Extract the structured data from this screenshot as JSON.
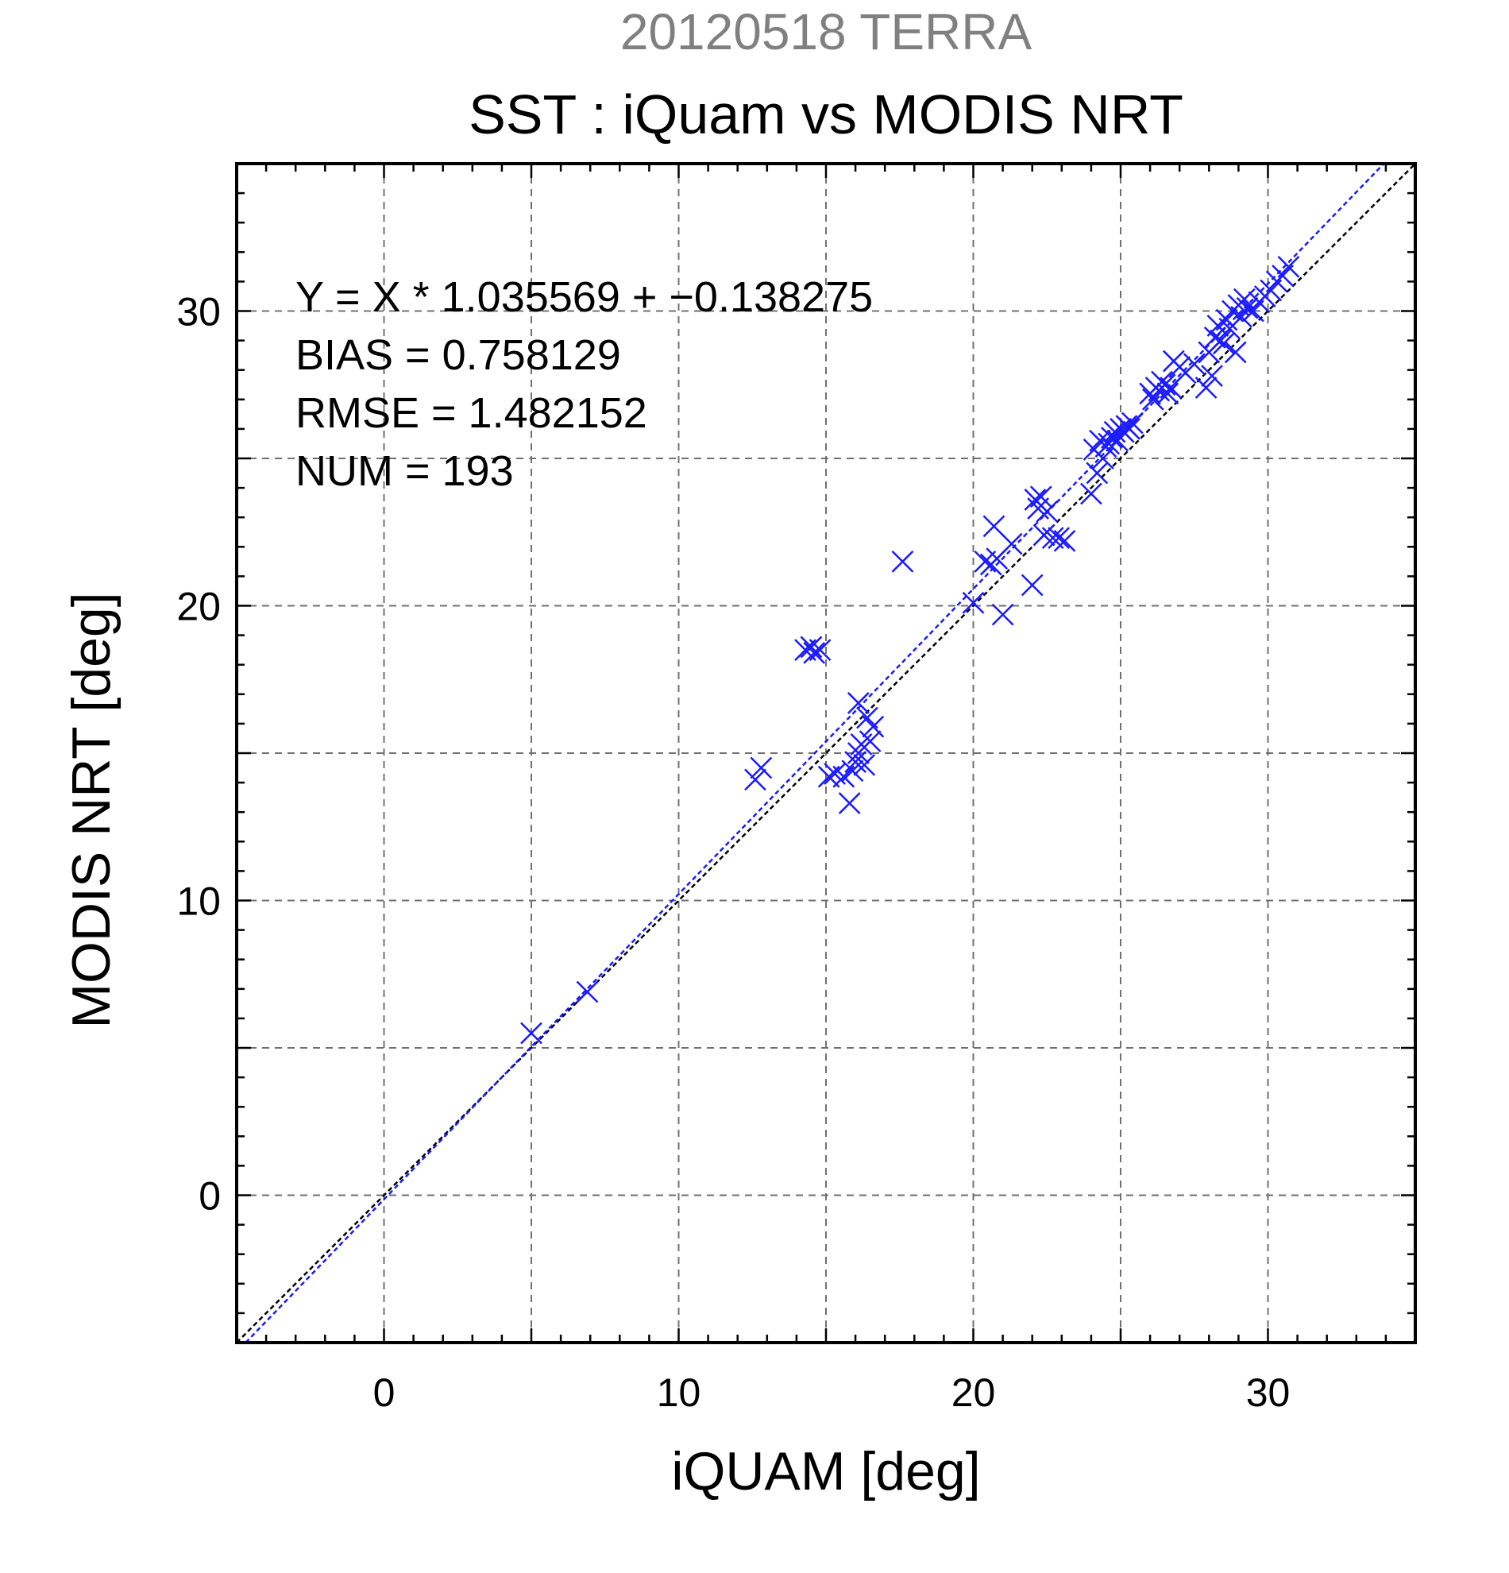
{
  "chart_data": {
    "type": "scatter",
    "title": "SST : iQuam vs MODIS NRT",
    "subtitle": "20120518 TERRA",
    "xlabel": "iQUAM [deg]",
    "ylabel": "MODIS NRT [deg]",
    "xlim": [
      -5,
      35
    ],
    "ylim": [
      -5,
      35
    ],
    "major_ticks": [
      0,
      10,
      20,
      30
    ],
    "tick_labels": [
      "0",
      "10",
      "20",
      "30"
    ],
    "grid": true,
    "grid_step": 5,
    "stats": [
      "Y = X * 1.035569 + −0.138275",
      "BIAS = 0.758129",
      "RMSE = 1.482152",
      "NUM = 193"
    ],
    "fit": {
      "slope": 1.035569,
      "intercept": -0.138275
    },
    "colors": {
      "points": "#1a1aff",
      "fit_line": "#1a1aff",
      "identity_line": "#000000",
      "subtitle": "#808080"
    },
    "marker": "x",
    "series": [
      {
        "x": [
          5.0,
          6.9,
          12.6,
          12.8,
          14.3,
          14.5,
          14.6,
          14.8,
          15.1,
          15.3,
          15.6,
          15.8,
          15.9,
          16.0,
          16.1,
          16.1,
          16.2,
          16.3,
          16.4,
          16.5,
          16.6,
          17.6,
          20.0,
          20.4,
          20.6,
          20.8,
          20.7,
          21.0,
          21.3,
          22.0,
          22.1,
          22.2,
          22.3,
          22.4,
          22.5,
          22.7,
          22.9,
          23.1,
          24.0,
          24.1,
          24.2,
          24.3,
          24.4,
          24.5,
          24.6,
          24.7,
          24.8,
          24.9,
          25.0,
          25.1,
          25.2,
          25.3,
          25.4,
          26.0,
          26.1,
          26.2,
          26.3,
          26.4,
          26.5,
          26.6,
          26.7,
          26.8,
          27.0,
          27.2,
          27.5,
          27.9,
          28.0,
          28.1,
          28.2,
          28.3,
          28.4,
          28.5,
          28.6,
          28.7,
          28.8,
          28.9,
          29.0,
          29.1,
          29.2,
          29.3,
          29.5,
          29.7,
          29.9,
          30.1,
          30.3,
          30.5,
          30.7
        ],
        "y": [
          5.5,
          6.9,
          14.1,
          14.5,
          18.5,
          18.6,
          18.4,
          18.5,
          14.2,
          14.3,
          14.2,
          13.3,
          14.4,
          14.7,
          15.0,
          16.7,
          15.3,
          14.6,
          16.2,
          15.4,
          15.9,
          21.5,
          20.1,
          21.5,
          21.4,
          21.6,
          22.7,
          19.7,
          22.1,
          20.7,
          23.6,
          23.3,
          23.7,
          22.4,
          23.2,
          22.3,
          22.3,
          22.2,
          23.8,
          25.3,
          24.5,
          25.6,
          25.0,
          25.4,
          25.5,
          25.7,
          25.9,
          25.6,
          26.0,
          25.9,
          26.1,
          26.0,
          26.2,
          27.2,
          27.0,
          27.4,
          27.3,
          27.6,
          27.5,
          27.2,
          27.4,
          28.3,
          28.1,
          27.9,
          28.2,
          27.4,
          28.6,
          27.8,
          29.1,
          29.5,
          29.0,
          28.9,
          29.7,
          29.4,
          30.0,
          28.6,
          30.2,
          29.8,
          30.4,
          30.1,
          30.0,
          30.3,
          30.5,
          30.7,
          31.0,
          31.2,
          31.5
        ]
      }
    ]
  }
}
